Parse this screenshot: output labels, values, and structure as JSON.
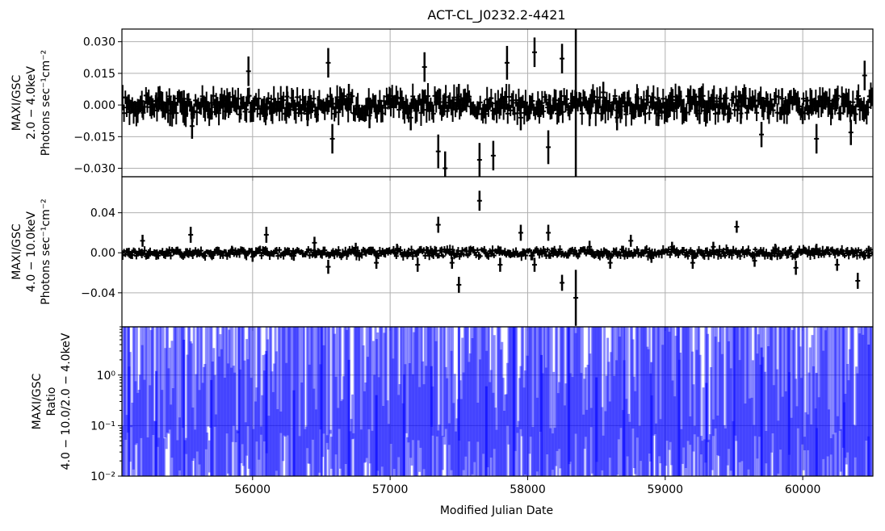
{
  "chart_data": [
    {
      "type": "line",
      "panel": "soft",
      "title": "ACT-CL_J0232.2-4421",
      "ylabel_lines": [
        "MAXI/GSC",
        "2.0 − 4.0keV",
        "Photons sec⁻¹cm⁻²"
      ],
      "ylim": [
        -0.034,
        0.036
      ],
      "xlim": [
        55050,
        60510
      ],
      "yticks": [
        -0.03,
        -0.015,
        0.0,
        0.015,
        0.03
      ],
      "ytick_labels": [
        "−0.030",
        "−0.015",
        "0.000",
        "0.015",
        "0.030"
      ],
      "xticks": [
        56000,
        57000,
        58000,
        59000,
        60000
      ],
      "grid": true,
      "series": [
        {
          "color": "#000000",
          "style": "step with error bars",
          "points": [
            {
              "x": 55100,
              "y": 0.001,
              "err": 0.004
            },
            {
              "x": 55200,
              "y": -0.002,
              "err": 0.004
            },
            {
              "x": 55300,
              "y": 0.002,
              "err": 0.004
            },
            {
              "x": 55400,
              "y": -0.004,
              "err": 0.006
            },
            {
              "x": 55500,
              "y": 0.003,
              "err": 0.004
            },
            {
              "x": 55560,
              "y": -0.01,
              "err": 0.006
            },
            {
              "x": 55700,
              "y": 0.001,
              "err": 0.004
            },
            {
              "x": 55800,
              "y": -0.003,
              "err": 0.004
            },
            {
              "x": 55970,
              "y": 0.016,
              "err": 0.007
            },
            {
              "x": 56100,
              "y": -0.002,
              "err": 0.005
            },
            {
              "x": 56250,
              "y": 0.004,
              "err": 0.005
            },
            {
              "x": 56400,
              "y": -0.004,
              "err": 0.006
            },
            {
              "x": 56550,
              "y": 0.02,
              "err": 0.007
            },
            {
              "x": 56580,
              "y": -0.016,
              "err": 0.007
            },
            {
              "x": 56700,
              "y": 0.005,
              "err": 0.005
            },
            {
              "x": 56850,
              "y": -0.005,
              "err": 0.006
            },
            {
              "x": 57000,
              "y": 0.003,
              "err": 0.005
            },
            {
              "x": 57150,
              "y": -0.006,
              "err": 0.006
            },
            {
              "x": 57250,
              "y": 0.018,
              "err": 0.007
            },
            {
              "x": 57350,
              "y": -0.022,
              "err": 0.008
            },
            {
              "x": 57400,
              "y": -0.03,
              "err": 0.008
            },
            {
              "x": 57500,
              "y": 0.004,
              "err": 0.006
            },
            {
              "x": 57650,
              "y": -0.026,
              "err": 0.008
            },
            {
              "x": 57750,
              "y": -0.024,
              "err": 0.007
            },
            {
              "x": 57850,
              "y": 0.02,
              "err": 0.008
            },
            {
              "x": 57950,
              "y": -0.006,
              "err": 0.006
            },
            {
              "x": 58050,
              "y": 0.025,
              "err": 0.007
            },
            {
              "x": 58150,
              "y": -0.02,
              "err": 0.008
            },
            {
              "x": 58250,
              "y": 0.022,
              "err": 0.007
            },
            {
              "x": 58350,
              "y": 0.0,
              "err": 0.036
            },
            {
              "x": 58450,
              "y": -0.004,
              "err": 0.006
            },
            {
              "x": 58550,
              "y": 0.006,
              "err": 0.005
            },
            {
              "x": 58650,
              "y": -0.006,
              "err": 0.006
            },
            {
              "x": 58800,
              "y": 0.003,
              "err": 0.005
            },
            {
              "x": 58950,
              "y": -0.005,
              "err": 0.005
            },
            {
              "x": 59100,
              "y": 0.004,
              "err": 0.005
            },
            {
              "x": 59250,
              "y": -0.004,
              "err": 0.005
            },
            {
              "x": 59400,
              "y": 0.003,
              "err": 0.005
            },
            {
              "x": 59550,
              "y": -0.004,
              "err": 0.005
            },
            {
              "x": 59700,
              "y": -0.014,
              "err": 0.006
            },
            {
              "x": 59850,
              "y": 0.003,
              "err": 0.005
            },
            {
              "x": 60000,
              "y": -0.004,
              "err": 0.005
            },
            {
              "x": 60100,
              "y": -0.016,
              "err": 0.007
            },
            {
              "x": 60250,
              "y": 0.003,
              "err": 0.005
            },
            {
              "x": 60350,
              "y": -0.013,
              "err": 0.006
            },
            {
              "x": 60450,
              "y": 0.014,
              "err": 0.007
            }
          ]
        }
      ]
    },
    {
      "type": "line",
      "panel": "hard",
      "ylabel_lines": [
        "MAXI/GSC",
        "4.0 − 10.0keV",
        "Photons sec⁻¹cm⁻²"
      ],
      "ylim": [
        -0.074,
        0.076
      ],
      "xlim": [
        55050,
        60510
      ],
      "yticks": [
        -0.04,
        0.0,
        0.04
      ],
      "ytick_labels": [
        "−0.04",
        "0.00",
        "0.04"
      ],
      "xticks": [
        56000,
        57000,
        58000,
        59000,
        60000
      ],
      "grid": true,
      "series": [
        {
          "color": "#000000",
          "style": "step with error bars",
          "points": [
            {
              "x": 55100,
              "y": 0.001,
              "err": 0.004
            },
            {
              "x": 55200,
              "y": 0.012,
              "err": 0.006
            },
            {
              "x": 55300,
              "y": -0.003,
              "err": 0.004
            },
            {
              "x": 55450,
              "y": 0.002,
              "err": 0.004
            },
            {
              "x": 55550,
              "y": 0.018,
              "err": 0.008
            },
            {
              "x": 55700,
              "y": -0.002,
              "err": 0.004
            },
            {
              "x": 55850,
              "y": 0.003,
              "err": 0.004
            },
            {
              "x": 56000,
              "y": -0.004,
              "err": 0.005
            },
            {
              "x": 56100,
              "y": 0.018,
              "err": 0.008
            },
            {
              "x": 56300,
              "y": -0.003,
              "err": 0.005
            },
            {
              "x": 56450,
              "y": 0.01,
              "err": 0.006
            },
            {
              "x": 56550,
              "y": -0.014,
              "err": 0.007
            },
            {
              "x": 56750,
              "y": 0.005,
              "err": 0.005
            },
            {
              "x": 56900,
              "y": -0.01,
              "err": 0.006
            },
            {
              "x": 57050,
              "y": 0.004,
              "err": 0.005
            },
            {
              "x": 57200,
              "y": -0.012,
              "err": 0.007
            },
            {
              "x": 57350,
              "y": 0.028,
              "err": 0.008
            },
            {
              "x": 57450,
              "y": -0.01,
              "err": 0.006
            },
            {
              "x": 57500,
              "y": -0.032,
              "err": 0.008
            },
            {
              "x": 57650,
              "y": 0.052,
              "err": 0.01
            },
            {
              "x": 57800,
              "y": -0.012,
              "err": 0.007
            },
            {
              "x": 57950,
              "y": 0.02,
              "err": 0.008
            },
            {
              "x": 58050,
              "y": -0.012,
              "err": 0.007
            },
            {
              "x": 58150,
              "y": 0.02,
              "err": 0.008
            },
            {
              "x": 58250,
              "y": -0.03,
              "err": 0.008
            },
            {
              "x": 58350,
              "y": -0.045,
              "err": 0.028
            },
            {
              "x": 58450,
              "y": 0.006,
              "err": 0.006
            },
            {
              "x": 58600,
              "y": -0.01,
              "err": 0.006
            },
            {
              "x": 58750,
              "y": 0.012,
              "err": 0.006
            },
            {
              "x": 58900,
              "y": -0.005,
              "err": 0.005
            },
            {
              "x": 59050,
              "y": 0.006,
              "err": 0.005
            },
            {
              "x": 59200,
              "y": -0.01,
              "err": 0.006
            },
            {
              "x": 59350,
              "y": 0.006,
              "err": 0.005
            },
            {
              "x": 59520,
              "y": 0.026,
              "err": 0.006
            },
            {
              "x": 59650,
              "y": -0.008,
              "err": 0.006
            },
            {
              "x": 59800,
              "y": 0.004,
              "err": 0.005
            },
            {
              "x": 59950,
              "y": -0.015,
              "err": 0.007
            },
            {
              "x": 60100,
              "y": 0.004,
              "err": 0.005
            },
            {
              "x": 60250,
              "y": -0.012,
              "err": 0.006
            },
            {
              "x": 60400,
              "y": -0.028,
              "err": 0.008
            },
            {
              "x": 60480,
              "y": 0.002,
              "err": 0.005
            }
          ]
        }
      ]
    },
    {
      "type": "bar",
      "panel": "ratio",
      "ylabel_lines": [
        "MAXI/GSC",
        "Ratio",
        "4.0 − 10.0/2.0 − 4.0keV"
      ],
      "xlabel": "Modified Julian Date",
      "yscale": "log",
      "ylim": [
        0.01,
        9.0
      ],
      "xlim": [
        55050,
        60510
      ],
      "yticks": [
        0.01,
        0.1,
        1.0
      ],
      "ytick_labels": [
        "10⁻²",
        "10⁻¹",
        "10⁰"
      ],
      "xticks": [
        56000,
        57000,
        58000,
        59000,
        60000
      ],
      "xtick_labels": [
        "56000",
        "57000",
        "58000",
        "59000",
        "60000"
      ],
      "grid": true,
      "series": [
        {
          "color": "#0000ff",
          "style": "dense vertical error bars, semi-transparent",
          "points": [
            {
              "x": 55100,
              "lo": 0.01,
              "hi": 9.0
            },
            {
              "x": 55300,
              "lo": 0.01,
              "hi": 1.2
            },
            {
              "x": 55500,
              "lo": 0.01,
              "hi": 5.0
            },
            {
              "x": 55700,
              "lo": 0.01,
              "hi": 0.8
            },
            {
              "x": 55900,
              "lo": 0.01,
              "hi": 9.0
            },
            {
              "x": 56100,
              "lo": 0.01,
              "hi": 3.0
            },
            {
              "x": 56300,
              "lo": 0.01,
              "hi": 0.5
            },
            {
              "x": 56500,
              "lo": 0.01,
              "hi": 9.0
            },
            {
              "x": 56700,
              "lo": 0.01,
              "hi": 2.0
            },
            {
              "x": 56900,
              "lo": 0.01,
              "hi": 0.4
            },
            {
              "x": 57100,
              "lo": 0.01,
              "hi": 9.0
            },
            {
              "x": 57300,
              "lo": 0.01,
              "hi": 1.5
            },
            {
              "x": 57500,
              "lo": 0.01,
              "hi": 9.0
            },
            {
              "x": 57700,
              "lo": 0.01,
              "hi": 0.6
            },
            {
              "x": 57900,
              "lo": 0.01,
              "hi": 9.0
            },
            {
              "x": 58100,
              "lo": 0.01,
              "hi": 2.5
            },
            {
              "x": 58300,
              "lo": 0.01,
              "hi": 9.0
            },
            {
              "x": 58500,
              "lo": 0.01,
              "hi": 0.9
            },
            {
              "x": 58700,
              "lo": 0.01,
              "hi": 9.0
            },
            {
              "x": 58900,
              "lo": 0.01,
              "hi": 1.8
            },
            {
              "x": 59100,
              "lo": 0.01,
              "hi": 9.0
            },
            {
              "x": 59300,
              "lo": 0.01,
              "hi": 0.7
            },
            {
              "x": 59500,
              "lo": 0.01,
              "hi": 9.0
            },
            {
              "x": 59700,
              "lo": 0.01,
              "hi": 3.5
            },
            {
              "x": 59900,
              "lo": 0.01,
              "hi": 9.0
            },
            {
              "x": 60100,
              "lo": 0.01,
              "hi": 1.1
            },
            {
              "x": 60300,
              "lo": 0.01,
              "hi": 9.0
            },
            {
              "x": 60480,
              "lo": 0.01,
              "hi": 4.0
            }
          ]
        }
      ]
    }
  ]
}
